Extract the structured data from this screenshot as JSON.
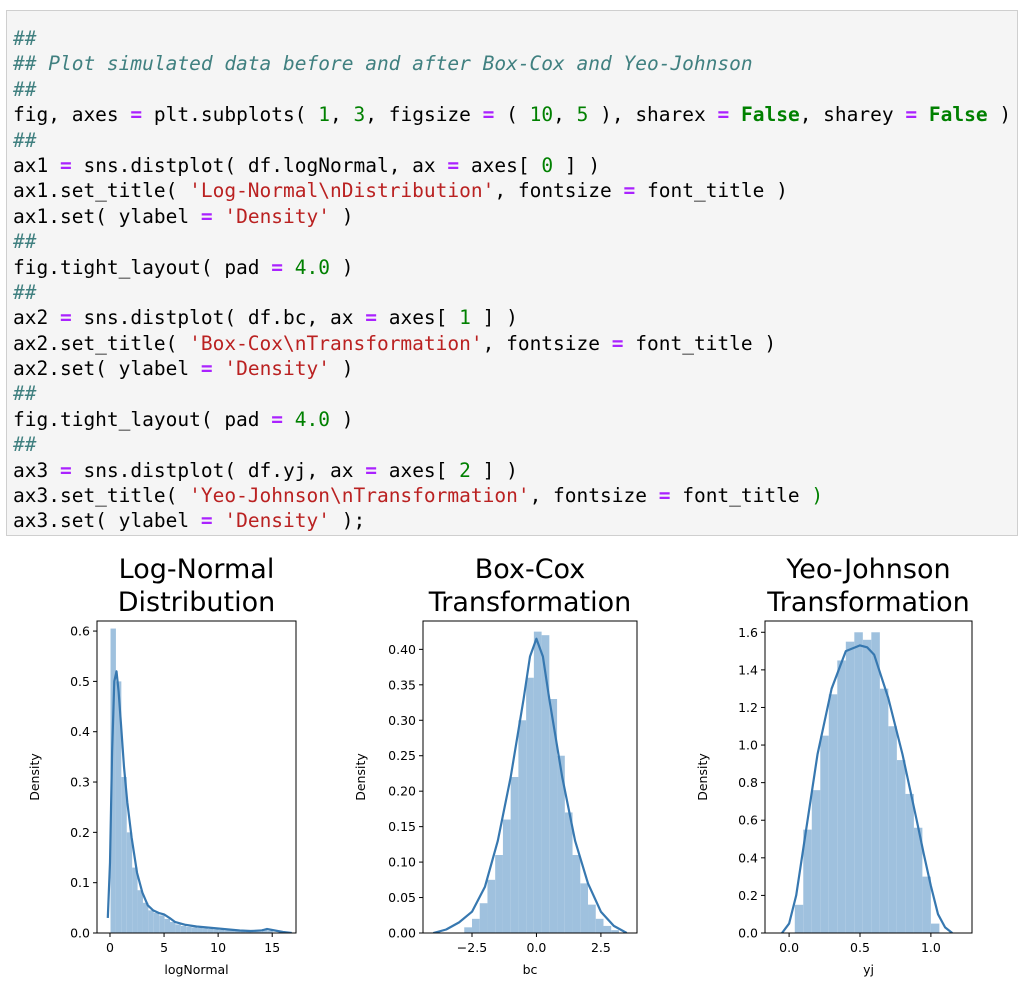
{
  "code_lines": [
    [
      {
        "t": "##",
        "c": "cm"
      }
    ],
    [
      {
        "t": "## Plot simulated data before and after Box-Cox and Yeo-Johnson",
        "c": "cm"
      }
    ],
    [
      {
        "t": "##",
        "c": "cm"
      }
    ],
    [
      {
        "t": "fig, axes ",
        "c": "pl"
      },
      {
        "t": "=",
        "c": "op"
      },
      {
        "t": " plt.subplots( ",
        "c": "pl"
      },
      {
        "t": "1",
        "c": "nm"
      },
      {
        "t": ", ",
        "c": "pl"
      },
      {
        "t": "3",
        "c": "nm"
      },
      {
        "t": ", figsize ",
        "c": "pl"
      },
      {
        "t": "=",
        "c": "op"
      },
      {
        "t": " ( ",
        "c": "pl"
      },
      {
        "t": "10",
        "c": "nm"
      },
      {
        "t": ", ",
        "c": "pl"
      },
      {
        "t": "5",
        "c": "nm"
      },
      {
        "t": " ), sharex ",
        "c": "pl"
      },
      {
        "t": "=",
        "c": "op"
      },
      {
        "t": " ",
        "c": "pl"
      },
      {
        "t": "False",
        "c": "kw"
      },
      {
        "t": ", sharey ",
        "c": "pl"
      },
      {
        "t": "=",
        "c": "op"
      },
      {
        "t": " ",
        "c": "pl"
      },
      {
        "t": "False",
        "c": "kw"
      },
      {
        "t": " )",
        "c": "pl"
      }
    ],
    [
      {
        "t": "##",
        "c": "cm"
      }
    ],
    [
      {
        "t": "ax1 ",
        "c": "pl"
      },
      {
        "t": "=",
        "c": "op"
      },
      {
        "t": " sns.distplot( df.logNormal, ax ",
        "c": "pl"
      },
      {
        "t": "=",
        "c": "op"
      },
      {
        "t": " axes[ ",
        "c": "pl"
      },
      {
        "t": "0",
        "c": "nm"
      },
      {
        "t": " ] )",
        "c": "pl"
      }
    ],
    [
      {
        "t": "ax1.set_title( ",
        "c": "pl"
      },
      {
        "t": "'Log-Normal\\nDistribution'",
        "c": "st"
      },
      {
        "t": ", fontsize ",
        "c": "pl"
      },
      {
        "t": "=",
        "c": "op"
      },
      {
        "t": " font_title )",
        "c": "pl"
      }
    ],
    [
      {
        "t": "ax1.set( ylabel ",
        "c": "pl"
      },
      {
        "t": "=",
        "c": "op"
      },
      {
        "t": " ",
        "c": "pl"
      },
      {
        "t": "'Density'",
        "c": "st"
      },
      {
        "t": " )",
        "c": "pl"
      }
    ],
    [
      {
        "t": "##",
        "c": "cm"
      }
    ],
    [
      {
        "t": "fig.tight_layout( pad ",
        "c": "pl"
      },
      {
        "t": "=",
        "c": "op"
      },
      {
        "t": " ",
        "c": "pl"
      },
      {
        "t": "4.0",
        "c": "nm"
      },
      {
        "t": " )",
        "c": "pl"
      }
    ],
    [
      {
        "t": "##",
        "c": "cm"
      }
    ],
    [
      {
        "t": "ax2 ",
        "c": "pl"
      },
      {
        "t": "=",
        "c": "op"
      },
      {
        "t": " sns.distplot( df.bc, ax ",
        "c": "pl"
      },
      {
        "t": "=",
        "c": "op"
      },
      {
        "t": " axes[ ",
        "c": "pl"
      },
      {
        "t": "1",
        "c": "nm"
      },
      {
        "t": " ] )",
        "c": "pl"
      }
    ],
    [
      {
        "t": "ax2.set_title( ",
        "c": "pl"
      },
      {
        "t": "'Box-Cox\\nTransformation'",
        "c": "st"
      },
      {
        "t": ", fontsize ",
        "c": "pl"
      },
      {
        "t": "=",
        "c": "op"
      },
      {
        "t": " font_title )",
        "c": "pl"
      }
    ],
    [
      {
        "t": "ax2.set( ylabel ",
        "c": "pl"
      },
      {
        "t": "=",
        "c": "op"
      },
      {
        "t": " ",
        "c": "pl"
      },
      {
        "t": "'Density'",
        "c": "st"
      },
      {
        "t": " )",
        "c": "pl"
      }
    ],
    [
      {
        "t": "##",
        "c": "cm"
      }
    ],
    [
      {
        "t": "fig.tight_layout( pad ",
        "c": "pl"
      },
      {
        "t": "=",
        "c": "op"
      },
      {
        "t": " ",
        "c": "pl"
      },
      {
        "t": "4.0",
        "c": "nm"
      },
      {
        "t": " )",
        "c": "pl"
      }
    ],
    [
      {
        "t": "##",
        "c": "cm"
      }
    ],
    [
      {
        "t": "ax3 ",
        "c": "pl"
      },
      {
        "t": "=",
        "c": "op"
      },
      {
        "t": " sns.distplot( df.yj, ax ",
        "c": "pl"
      },
      {
        "t": "=",
        "c": "op"
      },
      {
        "t": " axes[ ",
        "c": "pl"
      },
      {
        "t": "2",
        "c": "nm"
      },
      {
        "t": " ] )",
        "c": "pl"
      }
    ],
    [
      {
        "t": "ax3.set_title( ",
        "c": "pl"
      },
      {
        "t": "'Yeo-Johnson\\nTransformation'",
        "c": "st"
      },
      {
        "t": ", fontsize ",
        "c": "pl"
      },
      {
        "t": "=",
        "c": "op"
      },
      {
        "t": " font_title ",
        "c": "pl"
      },
      {
        "t": ")",
        "c": "nm"
      }
    ],
    [
      {
        "t": "ax3.set( ylabel ",
        "c": "pl"
      },
      {
        "t": "=",
        "c": "op"
      },
      {
        "t": " ",
        "c": "pl"
      },
      {
        "t": "'Density'",
        "c": "st"
      },
      {
        "t": " );",
        "c": "pl"
      }
    ]
  ],
  "colors": {
    "hist_fill": "#9fc1de",
    "kde_line": "#3778b0"
  },
  "chart_data": [
    {
      "type": "bar",
      "title": [
        "Log-Normal",
        "Distribution"
      ],
      "xlabel": "logNormal",
      "ylabel": "Density",
      "xlim": [
        -1.2,
        17.2
      ],
      "ylim": [
        0,
        0.62
      ],
      "xticks": [
        0,
        5,
        10,
        15
      ],
      "xtick_labels": [
        "0",
        "5",
        "10",
        "15"
      ],
      "yticks": [
        0.0,
        0.1,
        0.2,
        0.3,
        0.4,
        0.5,
        0.6
      ],
      "ytick_labels": [
        "0.0",
        "0.1",
        "0.2",
        "0.3",
        "0.4",
        "0.5",
        "0.6"
      ],
      "bin_edges": [
        0.05,
        0.55,
        1.05,
        1.55,
        2.05,
        2.55,
        3.05,
        3.55,
        4.05,
        4.55,
        5.05,
        5.55,
        6.05,
        6.55,
        7.05,
        7.55,
        8.05,
        8.55,
        9.05,
        9.55,
        10.05,
        10.55,
        11.05,
        11.55,
        12.05,
        12.55,
        13.05,
        13.55,
        14.05,
        14.55,
        15.05,
        15.55,
        16.05
      ],
      "densities": [
        0.605,
        0.5,
        0.31,
        0.2,
        0.13,
        0.085,
        0.06,
        0.045,
        0.04,
        0.035,
        0.028,
        0.022,
        0.017,
        0.014,
        0.012,
        0.011,
        0.01,
        0.009,
        0.008,
        0.007,
        0.006,
        0.005,
        0.005,
        0.004,
        0.003,
        0.003,
        0.002,
        0.002,
        0.008,
        0.004,
        0.001,
        0.001
      ],
      "kde_x": [
        -0.2,
        0.0,
        0.2,
        0.4,
        0.6,
        0.8,
        1.0,
        1.3,
        1.6,
        2.0,
        2.5,
        3.0,
        3.5,
        4.0,
        4.5,
        5.0,
        5.5,
        6.0,
        7.0,
        8.0,
        9.0,
        10.0,
        11.0,
        12.0,
        13.0,
        14.0,
        14.5,
        15.0,
        16.0,
        16.8
      ],
      "kde_y": [
        0.03,
        0.14,
        0.36,
        0.5,
        0.52,
        0.48,
        0.42,
        0.33,
        0.26,
        0.19,
        0.12,
        0.08,
        0.055,
        0.045,
        0.04,
        0.037,
        0.03,
        0.022,
        0.016,
        0.013,
        0.011,
        0.009,
        0.007,
        0.005,
        0.004,
        0.005,
        0.008,
        0.006,
        0.002,
        0.0
      ]
    },
    {
      "type": "bar",
      "title": [
        "Box-Cox",
        "Transformation"
      ],
      "xlabel": "bc",
      "ylabel": "Density",
      "xlim": [
        -4.4,
        3.9
      ],
      "ylim": [
        0,
        0.44
      ],
      "xticks": [
        -2.5,
        0.0,
        2.5
      ],
      "xtick_labels": [
        "−2.5",
        "0.0",
        "2.5"
      ],
      "yticks": [
        0.0,
        0.05,
        0.1,
        0.15,
        0.2,
        0.25,
        0.3,
        0.35,
        0.4
      ],
      "ytick_labels": [
        "0.00",
        "0.05",
        "0.10",
        "0.15",
        "0.20",
        "0.25",
        "0.30",
        "0.35",
        "0.40"
      ],
      "bin_edges": [
        -2.8,
        -2.5,
        -2.2,
        -1.9,
        -1.6,
        -1.3,
        -1.0,
        -0.7,
        -0.4,
        -0.1,
        0.2,
        0.5,
        0.8,
        1.1,
        1.4,
        1.7,
        2.0,
        2.3,
        2.6,
        2.9,
        3.2
      ],
      "densities": [
        0.008,
        0.02,
        0.042,
        0.075,
        0.11,
        0.16,
        0.22,
        0.3,
        0.36,
        0.425,
        0.42,
        0.33,
        0.25,
        0.17,
        0.11,
        0.07,
        0.04,
        0.02,
        0.01,
        0.004
      ],
      "kde_x": [
        -4.0,
        -3.5,
        -3.0,
        -2.5,
        -2.0,
        -1.5,
        -1.0,
        -0.5,
        -0.25,
        0.0,
        0.25,
        0.5,
        1.0,
        1.5,
        2.0,
        2.5,
        3.0,
        3.5
      ],
      "kde_y": [
        0.0,
        0.005,
        0.015,
        0.03,
        0.065,
        0.13,
        0.22,
        0.33,
        0.39,
        0.415,
        0.39,
        0.33,
        0.22,
        0.13,
        0.07,
        0.03,
        0.01,
        0.0
      ]
    },
    {
      "type": "bar",
      "title": [
        "Yeo-Johnson",
        "Transformation"
      ],
      "xlabel": "yj",
      "ylabel": "Density",
      "xlim": [
        -0.17,
        1.29
      ],
      "ylim": [
        0,
        1.66
      ],
      "xticks": [
        0.0,
        0.5,
        1.0
      ],
      "xtick_labels": [
        "0.0",
        "0.5",
        "1.0"
      ],
      "yticks": [
        0.0,
        0.2,
        0.4,
        0.6,
        0.8,
        1.0,
        1.2,
        1.4,
        1.6
      ],
      "ytick_labels": [
        "0.0",
        "0.2",
        "0.4",
        "0.6",
        "0.8",
        "1.0",
        "1.2",
        "1.4",
        "1.6"
      ],
      "bin_edges": [
        0.04,
        0.1,
        0.16,
        0.22,
        0.28,
        0.34,
        0.4,
        0.46,
        0.52,
        0.58,
        0.64,
        0.7,
        0.76,
        0.82,
        0.88,
        0.94,
        1.0,
        1.06
      ],
      "densities": [
        0.15,
        0.55,
        0.76,
        1.05,
        1.27,
        1.45,
        1.55,
        1.6,
        1.56,
        1.6,
        1.3,
        1.1,
        0.92,
        0.74,
        0.56,
        0.3,
        0.05
      ],
      "kde_x": [
        -0.05,
        0.0,
        0.05,
        0.1,
        0.15,
        0.2,
        0.3,
        0.4,
        0.5,
        0.55,
        0.6,
        0.7,
        0.8,
        0.9,
        0.95,
        1.0,
        1.05,
        1.1,
        1.15
      ],
      "kde_y": [
        0.0,
        0.05,
        0.2,
        0.45,
        0.7,
        0.95,
        1.3,
        1.5,
        1.53,
        1.52,
        1.48,
        1.25,
        0.95,
        0.6,
        0.42,
        0.25,
        0.1,
        0.03,
        0.0
      ]
    }
  ]
}
